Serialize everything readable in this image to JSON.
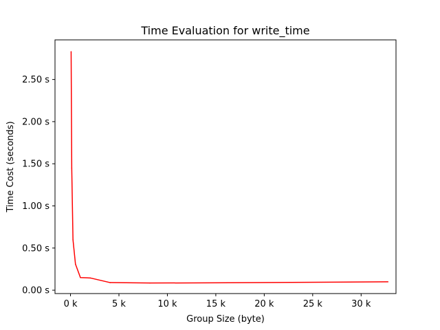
{
  "chart_data": {
    "type": "line",
    "title": "Time Evaluation for write_time",
    "xlabel": "Group Size (byte)",
    "ylabel": "Time Cost (seconds)",
    "xlim": [
      -1600,
      33600
    ],
    "ylim": [
      -0.04,
      2.97
    ],
    "x_ticks": [
      0,
      5000,
      10000,
      15000,
      20000,
      25000,
      30000
    ],
    "x_tick_labels": [
      "0 k",
      "5 k",
      "10 k",
      "15 k",
      "20 k",
      "25 k",
      "30 k"
    ],
    "y_ticks": [
      0,
      0.5,
      1.0,
      1.5,
      2.0,
      2.5
    ],
    "y_tick_labels": [
      "0.00 s",
      "0.50 s",
      "1.00 s",
      "1.50 s",
      "2.00 s",
      "2.50 s"
    ],
    "grid": false,
    "legend": "none",
    "series": [
      {
        "color": "#ff0000",
        "x": [
          64,
          128,
          256,
          512,
          1024,
          2048,
          4096,
          8192,
          16384,
          32768
        ],
        "y": [
          2.83,
          1.45,
          0.6,
          0.31,
          0.15,
          0.145,
          0.09,
          0.085,
          0.088,
          0.1
        ]
      }
    ]
  }
}
